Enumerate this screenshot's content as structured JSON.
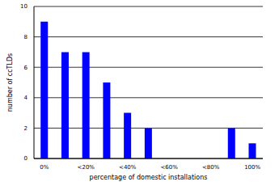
{
  "chart_data": {
    "type": "bar",
    "x_label": "percentage of domestic installations",
    "y_label": "number of ccTLDs",
    "categories": [
      "0%",
      null,
      "<20%",
      null,
      "<40%",
      null,
      "<60%",
      null,
      "<80%",
      null,
      "100%"
    ],
    "values": [
      9,
      7,
      7,
      5,
      3,
      2,
      0,
      0,
      0,
      2,
      1
    ],
    "color": "#0000ff",
    "ylim": [
      0,
      10
    ],
    "yticks": [
      0,
      2,
      4,
      6,
      8,
      10
    ],
    "grid": true
  }
}
